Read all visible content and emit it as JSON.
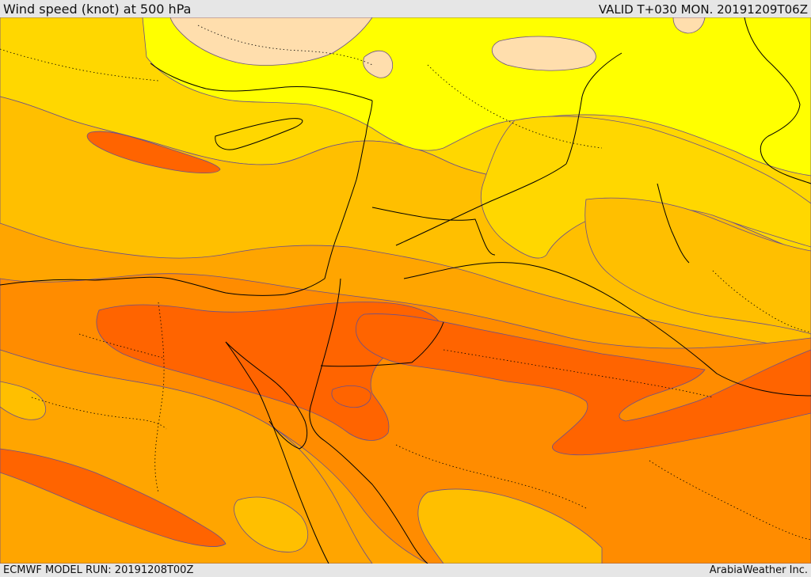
{
  "header": {
    "title": "Wind speed (knot) at 500 hPa",
    "valid": "VALID T+030 MON. 20191209T06Z"
  },
  "footer": {
    "model_run": "ECMWF MODEL RUN: 20191208T00Z",
    "credit": "ArabiaWeather Inc."
  },
  "colors": {
    "light": "#ffdead",
    "yellow": "#ffff00",
    "gold": "#ffd700",
    "amber": "#ffbf00",
    "orange": "#ffa500",
    "dark_orange": "#ff8c00",
    "red_orange": "#ff6400",
    "background": "#e6e6e6"
  }
}
